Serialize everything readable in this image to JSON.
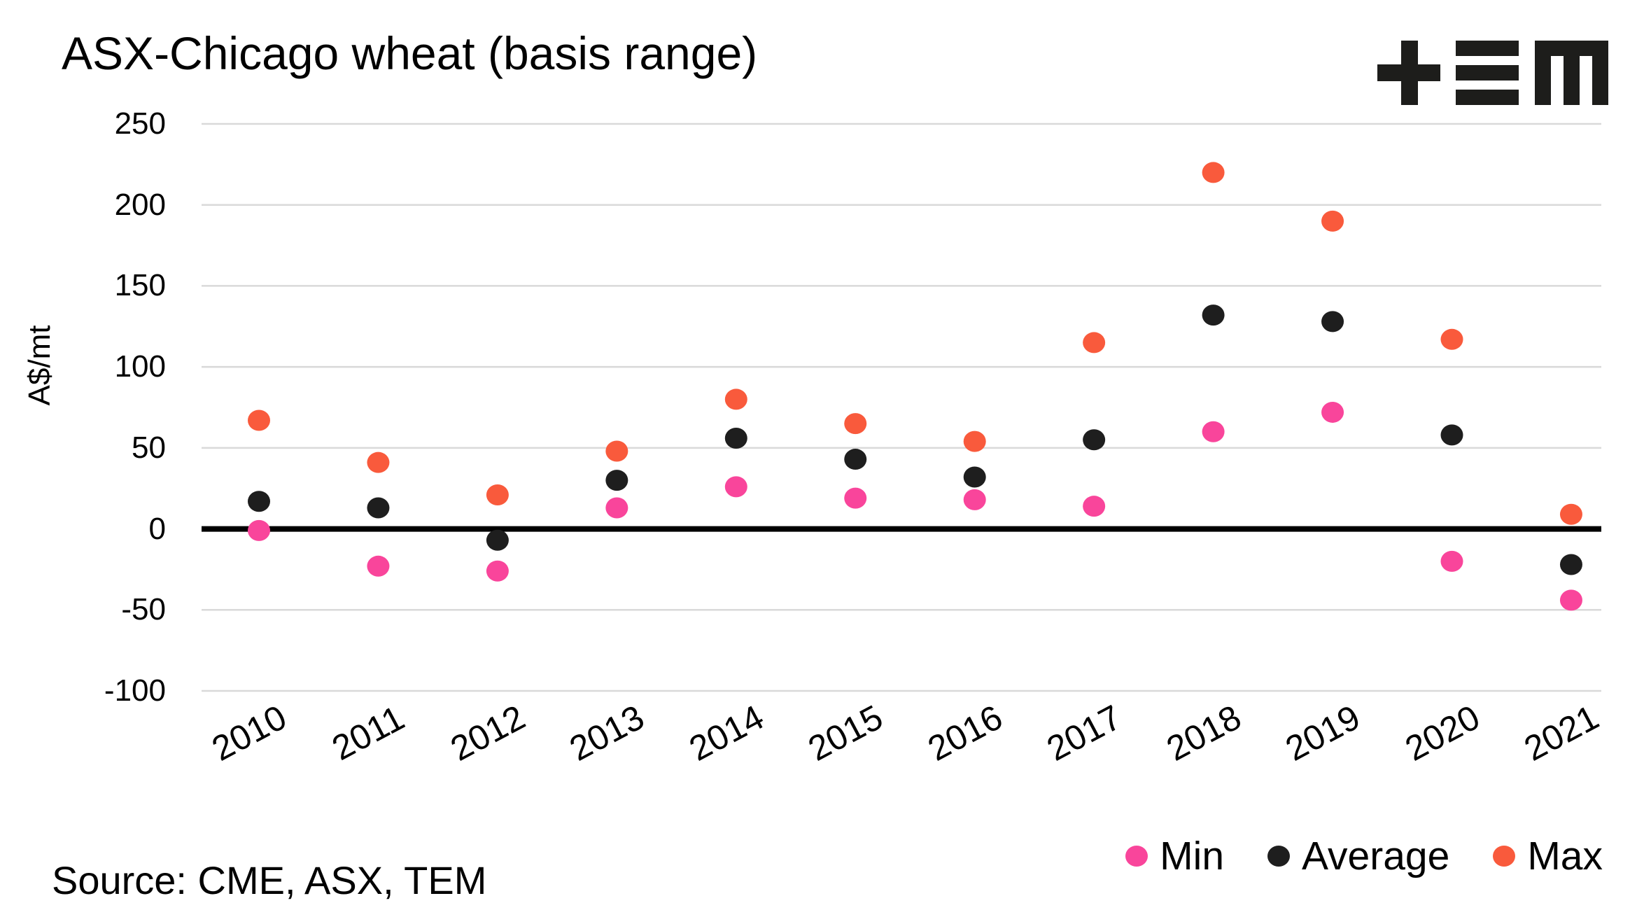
{
  "title": "ASX-Chicago wheat (basis range)",
  "source": "Source: CME, ASX, TEM",
  "logo": {
    "name": "TEM",
    "color": "#1d1d1b"
  },
  "colors": {
    "min": "#f9459b",
    "average": "#1e1e1e",
    "max": "#f95a3c",
    "gridline": "#d9d9d9",
    "zero_line": "#000000",
    "text": "#000000",
    "background": "#ffffff"
  },
  "legend": {
    "items": [
      {
        "label": "Min",
        "color": "#f9459b"
      },
      {
        "label": "Average",
        "color": "#1e1e1e"
      },
      {
        "label": "Max",
        "color": "#f95a3c"
      }
    ]
  },
  "chart_data": {
    "type": "scatter",
    "title": "ASX-Chicago wheat (basis range)",
    "xlabel": "",
    "ylabel": "A$/mt",
    "ylim": [
      -100,
      250
    ],
    "yticks": [
      250,
      200,
      150,
      100,
      50,
      0,
      -50,
      -100
    ],
    "grid": true,
    "zero_line": true,
    "legend_position": "bottom-right",
    "categories": [
      "2010",
      "2011",
      "2012",
      "2013",
      "2014",
      "2015",
      "2016",
      "2017",
      "2018",
      "2019",
      "2020",
      "2021"
    ],
    "series": [
      {
        "name": "Min",
        "color": "#f9459b",
        "values": [
          -1,
          -23,
          -26,
          13,
          26,
          19,
          18,
          14,
          60,
          72,
          -20,
          -44
        ]
      },
      {
        "name": "Average",
        "color": "#1e1e1e",
        "values": [
          17,
          13,
          -7,
          30,
          56,
          43,
          32,
          55,
          132,
          128,
          58,
          -22
        ]
      },
      {
        "name": "Max",
        "color": "#f95a3c",
        "values": [
          67,
          41,
          21,
          48,
          80,
          65,
          54,
          115,
          220,
          190,
          117,
          9
        ]
      }
    ]
  }
}
